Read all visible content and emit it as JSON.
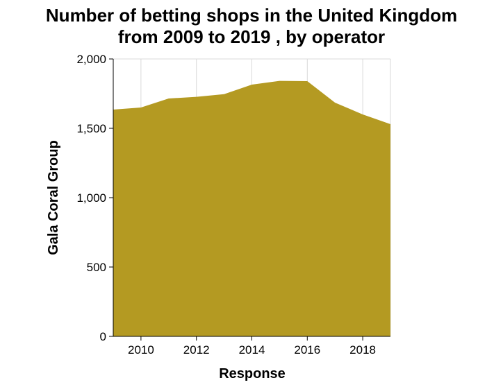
{
  "chart_data": {
    "type": "area",
    "title_line1": "Number of betting shops in the United Kingdom",
    "title_line2": "from 2009 to 2019 , by operator",
    "xlabel": "Response",
    "ylabel": "Gala Coral Group",
    "xlim": [
      2009,
      2019
    ],
    "ylim": [
      0,
      2000
    ],
    "x_ticks": [
      2010,
      2012,
      2014,
      2016,
      2018
    ],
    "x_tick_labels": [
      "2010",
      "2012",
      "2014",
      "2016",
      "2018"
    ],
    "y_ticks": [
      0,
      500,
      1000,
      1500,
      2000
    ],
    "y_tick_labels": [
      "0",
      "500",
      "1,000",
      "1,500",
      "2,000"
    ],
    "grid": true,
    "series": [
      {
        "color": "#b49a22",
        "x": [
          2009,
          2010,
          2011,
          2012,
          2013,
          2014,
          2015,
          2016,
          2017,
          2018,
          2019
        ],
        "values": [
          1635,
          1650,
          1715,
          1727,
          1746,
          1815,
          1842,
          1840,
          1685,
          1600,
          1530
        ]
      }
    ]
  }
}
